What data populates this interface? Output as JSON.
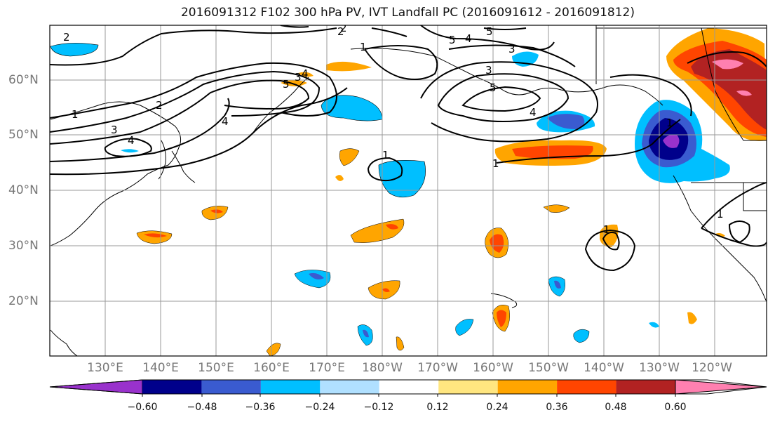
{
  "title": "2016091312 F102 300 hPa PV, IVT Landfall PC (2016091612 - 2016091812)",
  "lon_labels": [
    "130°E",
    "140°E",
    "150°E",
    "160°E",
    "170°E",
    "180°W",
    "170°W",
    "160°W",
    "150°W",
    "140°W",
    "130°W",
    "120°W"
  ],
  "lat_labels": [
    "60°N",
    "50°N",
    "40°N",
    "30°N",
    "20°N"
  ],
  "contour_labels": [
    "2",
    "1",
    "2",
    "3",
    "4",
    "2",
    "4",
    "1",
    "5",
    "5",
    "5",
    "3",
    "3",
    "4",
    "4",
    "1",
    "1",
    "1",
    "1",
    "1",
    "3",
    "4",
    "5",
    "2"
  ],
  "colorbar": {
    "ticks": [
      "-0.60",
      "-0.48",
      "-0.36",
      "-0.24",
      "-0.12",
      "0.12",
      "0.24",
      "0.36",
      "0.48",
      "0.60"
    ],
    "colors": [
      "#9932cc",
      "#00008b",
      "#3a5bd0",
      "#00bfff",
      "#b0e0ff",
      "#ffffff",
      "#ffe680",
      "#ffa500",
      "#ff4500",
      "#b22222",
      "#ff80b0"
    ]
  }
}
